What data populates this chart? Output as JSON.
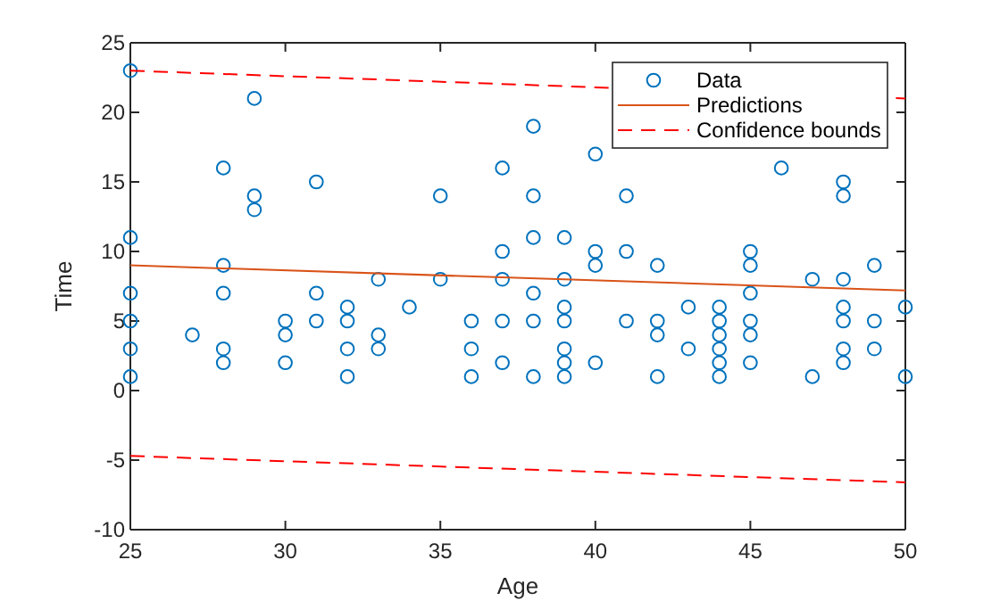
{
  "chart_data": {
    "type": "scatter",
    "xlabel": "Age",
    "ylabel": "Time",
    "xlim": [
      25,
      50
    ],
    "xticks": [
      25,
      30,
      35,
      40,
      45,
      50
    ],
    "ylim": [
      -10,
      25
    ],
    "yticks": [
      -10,
      -5,
      0,
      5,
      10,
      15,
      20,
      25
    ],
    "grid": false,
    "legend": "top right",
    "series": [
      {
        "name": "Data",
        "marker": "circle",
        "color": "#0072bd",
        "x": [
          25,
          25,
          25,
          25,
          25,
          25,
          27,
          28,
          28,
          28,
          28,
          28,
          29,
          29,
          29,
          30,
          30,
          30,
          31,
          31,
          31,
          32,
          32,
          32,
          32,
          33,
          33,
          33,
          34,
          35,
          35,
          36,
          36,
          36,
          37,
          37,
          37,
          37,
          37,
          38,
          38,
          38,
          38,
          38,
          38,
          39,
          39,
          39,
          39,
          39,
          39,
          39,
          40,
          40,
          40,
          40,
          41,
          41,
          41,
          42,
          42,
          42,
          42,
          43,
          43,
          44,
          44,
          44,
          44,
          44,
          44,
          45,
          45,
          45,
          45,
          45,
          45,
          46,
          47,
          47,
          48,
          48,
          48,
          48,
          48,
          48,
          48,
          49,
          49,
          49,
          50,
          50
        ],
        "values": [
          23,
          11,
          7,
          5,
          3,
          1,
          4,
          16,
          9,
          7,
          3,
          2,
          21,
          14,
          13,
          5,
          4,
          2,
          15,
          7,
          5,
          6,
          5,
          3,
          1,
          8,
          4,
          3,
          6,
          14,
          8,
          5,
          3,
          1,
          16,
          10,
          8,
          5,
          2,
          19,
          14,
          11,
          7,
          5,
          1,
          11,
          8,
          6,
          5,
          3,
          2,
          1,
          17,
          10,
          9,
          2,
          14,
          10,
          5,
          9,
          5,
          4,
          1,
          6,
          3,
          6,
          5,
          4,
          3,
          2,
          1,
          10,
          9,
          7,
          5,
          4,
          2,
          16,
          8,
          1,
          15,
          14,
          8,
          6,
          5,
          3,
          2,
          9,
          5,
          3,
          6,
          1
        ]
      },
      {
        "name": "Predictions",
        "type": "line",
        "marker": "none",
        "line_style": "solid",
        "color": "#d95319",
        "x": [
          25,
          50
        ],
        "values": [
          9.0,
          7.2
        ]
      },
      {
        "name": "Confidence bounds",
        "type": "line",
        "marker": "none",
        "line_style": "dashed",
        "color": "#ff0000",
        "x": [
          25,
          50
        ],
        "values": [
          23.0,
          21.0
        ]
      },
      {
        "type": "line",
        "marker": "none",
        "line_style": "dashed",
        "color": "#ff0000",
        "x": [
          25,
          50
        ],
        "values": [
          -4.7,
          -6.6
        ]
      }
    ]
  }
}
